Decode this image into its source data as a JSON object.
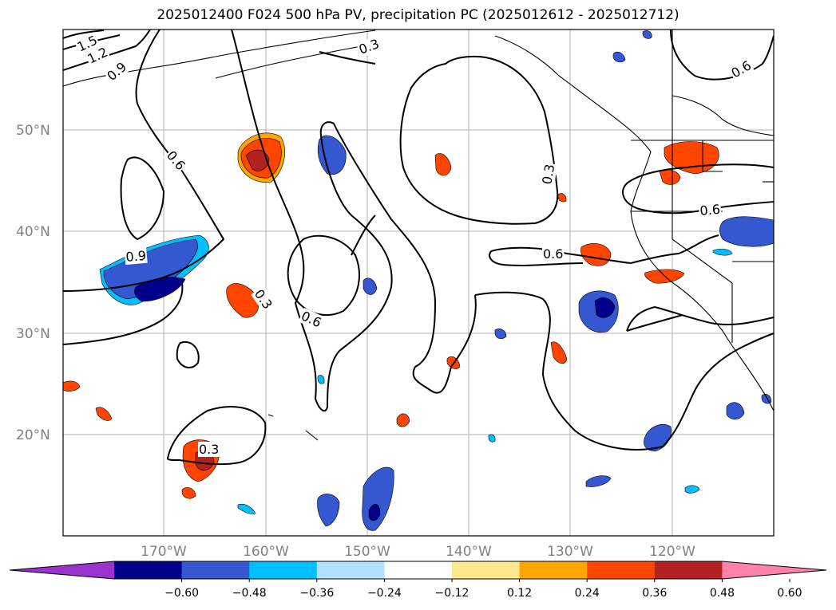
{
  "title": "2025012400 F024 500 hPa PV, precipitation PC (2025012612 - 2025012712)",
  "map": {
    "lat_labels": [
      "50°N",
      "40°N",
      "30°N",
      "20°N"
    ],
    "lon_labels": [
      "170°W",
      "160°W",
      "150°W",
      "140°W",
      "130°W",
      "120°W"
    ],
    "contour_labels": [
      "1.5",
      "1.2",
      "0.9",
      "0.3",
      "0.6",
      "0.6",
      "0.3",
      "0.6",
      "0.9",
      "0.3",
      "0.6",
      "0.6",
      "0.3"
    ]
  },
  "colorbar": {
    "colors": [
      "#9a32cd",
      "#00008b",
      "#3558d0",
      "#00bfff",
      "#b0e2ff",
      "#ffffff",
      "#ffe88e",
      "#ffa500",
      "#ff4500",
      "#b22222",
      "#ff82ab"
    ],
    "tick_labels": [
      "−0.60",
      "−0.48",
      "−0.36",
      "−0.24",
      "−0.12",
      "0.12",
      "0.24",
      "0.36",
      "0.48",
      "0.60"
    ]
  }
}
